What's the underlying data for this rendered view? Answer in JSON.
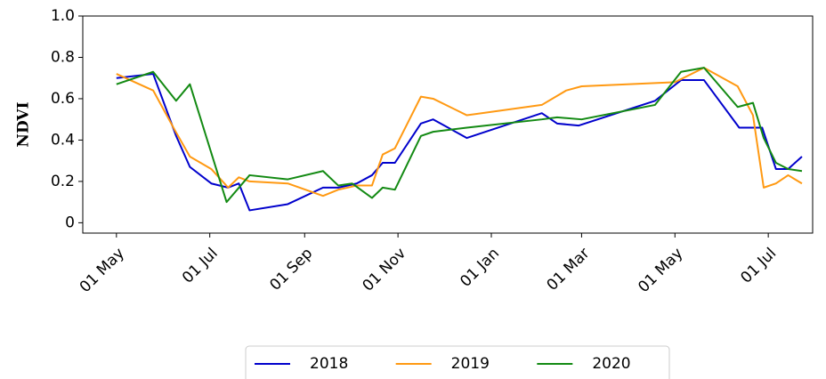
{
  "chart_data": {
    "type": "line",
    "ylabel": "NDVI",
    "xlim": [
      -22,
      455
    ],
    "xticks": [
      {
        "value": 0,
        "label": "01 May"
      },
      {
        "value": 61,
        "label": "01 Jul"
      },
      {
        "value": 123,
        "label": "01 Sep"
      },
      {
        "value": 184,
        "label": "01 Nov"
      },
      {
        "value": 245,
        "label": "01 Jan"
      },
      {
        "value": 304,
        "label": "01 Mar"
      },
      {
        "value": 365,
        "label": "01 May"
      },
      {
        "value": 426,
        "label": "01 Jul"
      }
    ],
    "ylim": [
      -0.05,
      1.0
    ],
    "yticks": [
      {
        "value": 0,
        "label": "0"
      },
      0.2,
      0.4,
      0.6,
      0.8,
      {
        "value": 1.0,
        "label": "1.0"
      }
    ],
    "grid": false,
    "legend": "bottom",
    "series": [
      {
        "name": "2018",
        "color": "#0000cc",
        "x": [
          0,
          24,
          39,
          48,
          62,
          73,
          80,
          87,
          112,
          135,
          145,
          157,
          167,
          174,
          182,
          199,
          207,
          229,
          278,
          288,
          302,
          352,
          369,
          384,
          407,
          422,
          431,
          439,
          448
        ],
        "values": [
          0.7,
          0.72,
          0.42,
          0.27,
          0.19,
          0.17,
          0.19,
          0.06,
          0.09,
          0.17,
          0.17,
          0.19,
          0.23,
          0.29,
          0.29,
          0.48,
          0.5,
          0.41,
          0.53,
          0.48,
          0.47,
          0.59,
          0.69,
          0.69,
          0.46,
          0.46,
          0.26,
          0.26,
          0.32
        ]
      },
      {
        "name": "2019",
        "color": "#ff9912",
        "x": [
          0,
          24,
          38,
          48,
          62,
          73,
          80,
          87,
          112,
          135,
          145,
          157,
          167,
          174,
          182,
          199,
          207,
          229,
          278,
          294,
          304,
          365,
          384,
          406,
          416,
          423,
          431,
          439,
          448
        ],
        "values": [
          0.72,
          0.64,
          0.45,
          0.32,
          0.26,
          0.17,
          0.22,
          0.2,
          0.19,
          0.13,
          0.16,
          0.18,
          0.18,
          0.33,
          0.36,
          0.61,
          0.6,
          0.52,
          0.57,
          0.64,
          0.66,
          0.68,
          0.75,
          0.66,
          0.52,
          0.17,
          0.19,
          0.23,
          0.19
        ]
      },
      {
        "name": "2020",
        "color": "#138a13",
        "x": [
          0,
          24,
          39,
          48,
          72,
          87,
          112,
          135,
          145,
          154,
          167,
          174,
          182,
          199,
          207,
          229,
          278,
          288,
          304,
          352,
          369,
          384,
          406,
          416,
          423,
          431,
          439,
          448
        ],
        "values": [
          0.67,
          0.73,
          0.59,
          0.67,
          0.1,
          0.23,
          0.21,
          0.25,
          0.18,
          0.19,
          0.12,
          0.17,
          0.16,
          0.42,
          0.44,
          0.46,
          0.5,
          0.51,
          0.5,
          0.57,
          0.73,
          0.75,
          0.56,
          0.58,
          0.41,
          0.29,
          0.26,
          0.25
        ]
      }
    ]
  }
}
